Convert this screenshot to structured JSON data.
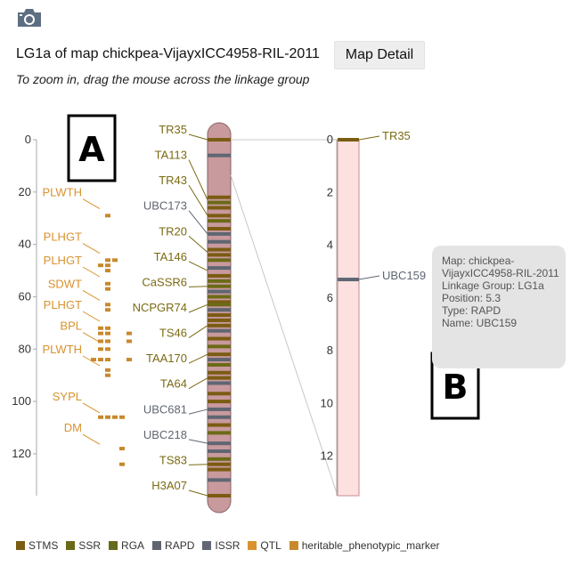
{
  "header": {
    "icon": "camera-icon",
    "title": "LG1a of map chickpea-VijayxICC4958-RIL-2011",
    "map_detail_label": "Map Detail",
    "zoom_hint": "To zoom in, drag the mouse across the linkage group"
  },
  "panel_labels": {
    "a": "A",
    "b": "B"
  },
  "colors": {
    "STMS": "#7a5c13",
    "SSR": "#6b6a18",
    "RGA": "#656a1e",
    "RAPD": "#5f6672",
    "ISSR": "#616775",
    "QTL": "#d9922e",
    "heritable_phenotypic_marker": "#c8892d",
    "chromosome_fill": "#c89a9e",
    "zoom_fill": "#fde0e0",
    "label_gold": "#7a6a12",
    "label_gray": "#5f6672",
    "label_orange": "#d9922e"
  },
  "main_axis": {
    "min": 0,
    "max": 136,
    "ticks": [
      0,
      20,
      40,
      60,
      80,
      100,
      120
    ]
  },
  "zoom_axis": {
    "min": 0,
    "max": 13.5,
    "ticks": [
      0,
      2,
      4,
      6,
      8,
      10,
      12
    ]
  },
  "marker_labels": [
    {
      "name": "TR35",
      "pos": 0,
      "type": "STMS"
    },
    {
      "name": "TA113",
      "pos": 23,
      "type": "STMS"
    },
    {
      "name": "TR43",
      "pos": 29,
      "type": "STMS"
    },
    {
      "name": "UBC173",
      "pos": 36,
      "type": "RAPD"
    },
    {
      "name": "TR20",
      "pos": 43,
      "type": "STMS"
    },
    {
      "name": "TA146",
      "pos": 50,
      "type": "STMS"
    },
    {
      "name": "CaSSR6",
      "pos": 56,
      "type": "SSR"
    },
    {
      "name": "NCPGR74",
      "pos": 63,
      "type": "SSR"
    },
    {
      "name": "TS46",
      "pos": 71,
      "type": "STMS"
    },
    {
      "name": "TAA170",
      "pos": 82,
      "type": "STMS"
    },
    {
      "name": "TA64",
      "pos": 91,
      "type": "STMS"
    },
    {
      "name": "UBC681",
      "pos": 103,
      "type": "RAPD"
    },
    {
      "name": "UBC218",
      "pos": 116,
      "type": "RAPD"
    },
    {
      "name": "TS83",
      "pos": 124,
      "type": "STMS"
    },
    {
      "name": "H3A07",
      "pos": 136,
      "type": "STMS"
    }
  ],
  "band_positions": [
    0,
    6,
    22,
    24,
    26,
    29,
    31,
    34,
    36,
    39,
    42,
    44,
    46,
    49,
    52,
    54,
    56,
    58,
    60,
    62,
    63,
    65,
    67,
    69,
    71,
    73,
    76,
    79,
    82,
    84,
    86,
    89,
    91,
    93,
    97,
    100,
    103,
    106,
    109,
    112,
    116,
    119,
    122,
    124,
    126,
    130,
    136
  ],
  "qtl_labels": [
    {
      "name": "PLWTH",
      "pos": 25
    },
    {
      "name": "PLHGT",
      "pos": 42
    },
    {
      "name": "PLHGT",
      "pos": 51
    },
    {
      "name": "SDWT",
      "pos": 60
    },
    {
      "name": "PLHGT",
      "pos": 68
    },
    {
      "name": "BPL",
      "pos": 76
    },
    {
      "name": "PLWTH",
      "pos": 85
    },
    {
      "name": "SYPL",
      "pos": 103
    },
    {
      "name": "DM",
      "pos": 115
    }
  ],
  "qtl_marks": [
    {
      "pos": 29,
      "col": 0
    },
    {
      "pos": 46,
      "col": 0
    },
    {
      "pos": 46,
      "col": 1
    },
    {
      "pos": 48,
      "col": 0
    },
    {
      "pos": 48,
      "col": -1
    },
    {
      "pos": 50,
      "col": 0
    },
    {
      "pos": 55,
      "col": 0
    },
    {
      "pos": 57,
      "col": 0
    },
    {
      "pos": 63,
      "col": 0
    },
    {
      "pos": 65,
      "col": 0
    },
    {
      "pos": 72,
      "col": 0
    },
    {
      "pos": 72,
      "col": -1
    },
    {
      "pos": 74,
      "col": -1
    },
    {
      "pos": 74,
      "col": 0
    },
    {
      "pos": 74,
      "col": 3
    },
    {
      "pos": 77,
      "col": -1
    },
    {
      "pos": 77,
      "col": 0
    },
    {
      "pos": 77,
      "col": 3
    },
    {
      "pos": 80,
      "col": 0
    },
    {
      "pos": 80,
      "col": -1
    },
    {
      "pos": 84,
      "col": -2
    },
    {
      "pos": 84,
      "col": -1
    },
    {
      "pos": 84,
      "col": 0
    },
    {
      "pos": 84,
      "col": 3
    },
    {
      "pos": 88,
      "col": 0
    },
    {
      "pos": 90,
      "col": 0
    },
    {
      "pos": 106,
      "col": -1
    },
    {
      "pos": 106,
      "col": 0
    },
    {
      "pos": 106,
      "col": 1
    },
    {
      "pos": 106,
      "col": 2
    },
    {
      "pos": 118,
      "col": 2
    },
    {
      "pos": 124,
      "col": 2
    }
  ],
  "zoom_markers": [
    {
      "name": "TR35",
      "pos": 0,
      "type": "STMS"
    },
    {
      "name": "UBC159",
      "pos": 5.3,
      "type": "RAPD"
    }
  ],
  "tooltip": {
    "lines": [
      "Map: chickpea-",
      "VijayxICC4958-RIL-2011",
      "Linkage Group: LG1a",
      "Position: 5.3",
      "Type: RAPD",
      "Name: UBC159"
    ]
  },
  "legend": [
    {
      "label": "STMS",
      "type": "STMS"
    },
    {
      "label": "SSR",
      "type": "SSR"
    },
    {
      "label": "RGA",
      "type": "RGA"
    },
    {
      "label": "RAPD",
      "type": "RAPD"
    },
    {
      "label": "ISSR",
      "type": "ISSR"
    },
    {
      "label": "QTL",
      "type": "QTL"
    },
    {
      "label": "heritable_phenotypic_marker",
      "type": "heritable_phenotypic_marker"
    }
  ]
}
